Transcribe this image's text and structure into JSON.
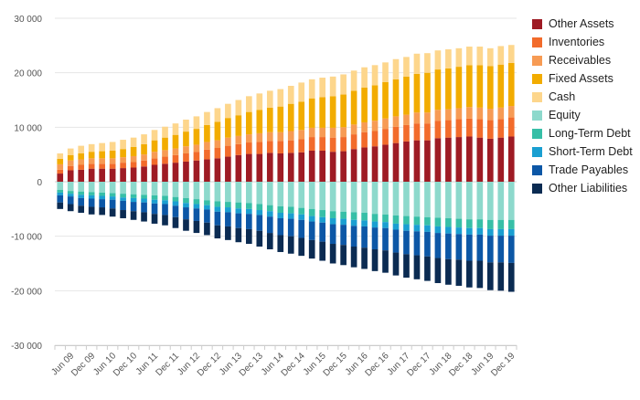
{
  "chart_data": {
    "type": "bar",
    "stacked": true,
    "grid": true,
    "legend_position": "right",
    "y_ticks": [
      30000,
      20000,
      10000,
      0,
      -10000,
      -20000,
      -30000
    ],
    "y_tick_labels": [
      "30 000",
      "20 000",
      "10 000",
      "0",
      "-10 000",
      "-20 000",
      "-30 000"
    ],
    "ylim": [
      -30000,
      30000
    ],
    "categories": [
      "Mar 09",
      "Jun 09",
      "Sep 09",
      "Dec 09",
      "Mar 10",
      "Jun 10",
      "Sep 10",
      "Dec 10",
      "Mar 11",
      "Jun 11",
      "Sep 11",
      "Dec 11",
      "Mar 12",
      "Jun 12",
      "Sep 12",
      "Dec 12",
      "Mar 13",
      "Jun 13",
      "Sep 13",
      "Dec 13",
      "Mar 14",
      "Jun 14",
      "Sep 14",
      "Dec 14",
      "Mar 15",
      "Jun 15",
      "Sep 15",
      "Dec 15",
      "Mar 16",
      "Jun 16",
      "Sep 16",
      "Dec 16",
      "Mar 17",
      "Jun 17",
      "Sep 17",
      "Dec 17",
      "Mar 18",
      "Jun 18",
      "Sep 18",
      "Dec 18",
      "Mar 19",
      "Jun 19",
      "Sep 19",
      "Dec 19"
    ],
    "x_tick_labels": [
      "Jun 09",
      "Dec 09",
      "Jun 10",
      "Dec 10",
      "Jun 11",
      "Dec 11",
      "Jun 12",
      "Dec 12",
      "Jun 13",
      "Dec 13",
      "Jun 14",
      "Dec 14",
      "Jun 15",
      "Dec 15",
      "Jun 16",
      "Dec 16",
      "Jun 17",
      "Dec 17",
      "Jun 18",
      "Dec 18",
      "Jun 19",
      "Dec 19"
    ],
    "series": [
      {
        "name": "Other Assets",
        "color": "#9e1b24",
        "side": "positive",
        "values": [
          1500,
          2100,
          2200,
          2400,
          2400,
          2400,
          2500,
          2600,
          2800,
          3100,
          3300,
          3500,
          3700,
          3900,
          4100,
          4300,
          4600,
          4900,
          5100,
          5100,
          5300,
          5200,
          5300,
          5400,
          5700,
          5700,
          5500,
          5600,
          6000,
          6300,
          6500,
          6800,
          7100,
          7400,
          7600,
          7600,
          8000,
          8100,
          8200,
          8300,
          8100,
          7900,
          8100,
          8300
        ]
      },
      {
        "name": "Inventories",
        "color": "#f26b2b",
        "side": "positive",
        "values": [
          700,
          800,
          900,
          900,
          900,
          900,
          1000,
          1000,
          1100,
          1200,
          1300,
          1400,
          1500,
          1600,
          1800,
          1900,
          2000,
          2000,
          2100,
          2200,
          2200,
          2300,
          2300,
          2400,
          2500,
          2500,
          2600,
          2600,
          2700,
          2800,
          2800,
          2900,
          3000,
          3000,
          3100,
          3100,
          3200,
          3200,
          3300,
          3300,
          3400,
          3400,
          3400,
          3500
        ]
      },
      {
        "name": "Receivables",
        "color": "#f79b54",
        "side": "positive",
        "values": [
          1000,
          1000,
          1000,
          1000,
          1000,
          1000,
          1000,
          1100,
          1100,
          1200,
          1200,
          1200,
          1300,
          1300,
          1400,
          1400,
          1500,
          1500,
          1500,
          1600,
          1600,
          1600,
          1700,
          1700,
          1700,
          1700,
          1800,
          1800,
          1800,
          1800,
          1900,
          1900,
          1900,
          1900,
          2000,
          2000,
          2000,
          2000,
          2000,
          2100,
          2100,
          2100,
          2100,
          2100
        ]
      },
      {
        "name": "Fixed Assets",
        "color": "#f2ac00",
        "side": "positive",
        "values": [
          1000,
          1000,
          1100,
          1200,
          1300,
          1400,
          1500,
          1700,
          1900,
          2100,
          2300,
          2500,
          2700,
          2900,
          3100,
          3400,
          3600,
          3800,
          4100,
          4300,
          4500,
          4700,
          5000,
          5200,
          5400,
          5600,
          5800,
          6000,
          6200,
          6400,
          6500,
          6700,
          6800,
          7000,
          7100,
          7300,
          7400,
          7500,
          7600,
          7700,
          7800,
          7800,
          7900,
          7900
        ]
      },
      {
        "name": "Cash",
        "color": "#fdd68c",
        "side": "positive",
        "values": [
          1000,
          1200,
          1400,
          1400,
          1500,
          1600,
          1700,
          1700,
          1800,
          1900,
          2000,
          2100,
          2200,
          2300,
          2400,
          2500,
          2600,
          2800,
          2900,
          3000,
          3100,
          3200,
          3300,
          3500,
          3500,
          3600,
          3600,
          3700,
          3700,
          3700,
          3700,
          3600,
          3700,
          3600,
          3700,
          3600,
          3500,
          3500,
          3400,
          3400,
          3400,
          3300,
          3400,
          3300
        ]
      },
      {
        "name": "Equity",
        "color": "#8dd9cc",
        "side": "negative",
        "values": [
          1500,
          1700,
          1800,
          1900,
          2000,
          2100,
          2200,
          2300,
          2400,
          2500,
          2600,
          2800,
          3000,
          3200,
          3400,
          3600,
          3700,
          3800,
          3900,
          4100,
          4300,
          4500,
          4600,
          4800,
          5000,
          5200,
          5400,
          5500,
          5600,
          5700,
          5900,
          6000,
          6200,
          6300,
          6400,
          6500,
          6600,
          6700,
          6800,
          6900,
          6900,
          7000,
          7000,
          7000
        ]
      },
      {
        "name": "Long-Term Debt",
        "color": "#37bfa7",
        "side": "negative",
        "values": [
          500,
          500,
          600,
          600,
          600,
          600,
          700,
          700,
          700,
          800,
          800,
          800,
          900,
          900,
          900,
          1000,
          1000,
          1100,
          1100,
          1100,
          1100,
          1200,
          1200,
          1200,
          1300,
          1300,
          1300,
          1300,
          1400,
          1400,
          1400,
          1400,
          1500,
          1500,
          1500,
          1500,
          1600,
          1600,
          1600,
          1600,
          1600,
          1700,
          1700,
          1700
        ]
      },
      {
        "name": "Short-Term Debt",
        "color": "#1a9fd1",
        "side": "negative",
        "values": [
          500,
          500,
          600,
          600,
          600,
          600,
          600,
          700,
          700,
          700,
          700,
          800,
          800,
          800,
          800,
          900,
          900,
          900,
          900,
          900,
          1000,
          1000,
          1000,
          1000,
          1000,
          1000,
          1100,
          1100,
          1100,
          1100,
          1100,
          1100,
          1100,
          1200,
          1200,
          1200,
          1200,
          1200,
          1200,
          1200,
          1200,
          1200,
          1200,
          1200
        ]
      },
      {
        "name": "Trade Payables",
        "color": "#0c57a6",
        "side": "negative",
        "values": [
          1300,
          1400,
          1400,
          1500,
          1500,
          1600,
          1700,
          1700,
          1800,
          1900,
          2000,
          2100,
          2200,
          2300,
          2400,
          2500,
          2600,
          2700,
          2800,
          2900,
          3000,
          3100,
          3200,
          3300,
          3400,
          3500,
          3600,
          3700,
          3800,
          3900,
          4000,
          4100,
          4200,
          4300,
          4400,
          4500,
          4600,
          4700,
          4700,
          4800,
          4800,
          4900,
          4900,
          5000
        ]
      },
      {
        "name": "Other Liabilities",
        "color": "#0b2b52",
        "side": "negative",
        "values": [
          1200,
          1300,
          1300,
          1400,
          1400,
          1500,
          1500,
          1600,
          1700,
          1800,
          1900,
          2000,
          2100,
          2200,
          2300,
          2400,
          2500,
          2600,
          2700,
          2900,
          3000,
          3100,
          3200,
          3300,
          3400,
          3500,
          3600,
          3700,
          3800,
          3900,
          4000,
          4100,
          4200,
          4300,
          4400,
          4500,
          4600,
          4700,
          4800,
          4900,
          5000,
          5100,
          5200,
          5300
        ]
      }
    ]
  }
}
